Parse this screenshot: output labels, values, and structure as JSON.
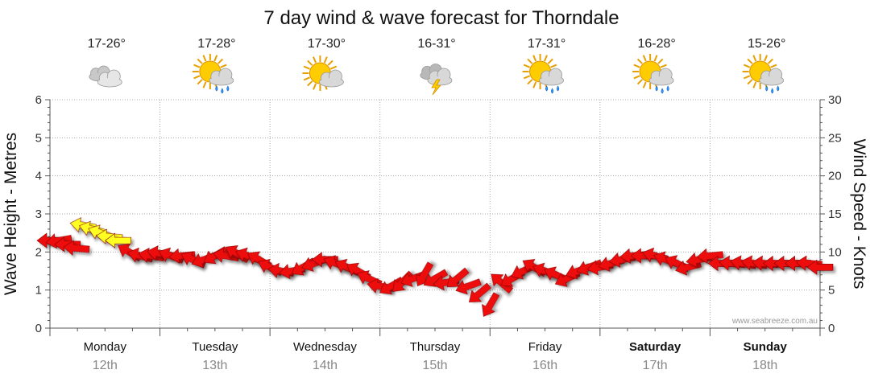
{
  "title": "7 day wind & wave forecast for Thorndale",
  "credit": "www.seabreeze.com.au",
  "colors": {
    "wind_normal": "#ee1111",
    "wind_strong": "#ffff22",
    "grid": "#aaaaaa"
  },
  "chart_data": {
    "type": "line",
    "title": "7 day wind & wave forecast for Thorndale",
    "ylabel_left": "Wave Height - Metres",
    "ylabel_right": "Wind Speed - Knots",
    "ylim_left": [
      0,
      6
    ],
    "ylim_right": [
      0,
      30
    ],
    "left_ticks": [
      "0",
      "1",
      "2",
      "3",
      "4",
      "5",
      "6"
    ],
    "right_ticks": [
      "0",
      "5",
      "10",
      "15",
      "20",
      "25",
      "30"
    ],
    "grid": true,
    "days": [
      {
        "name": "Monday",
        "date": "12th",
        "bold": false,
        "temp": "17-26°",
        "icon": "cloudy-icon"
      },
      {
        "name": "Tuesday",
        "date": "13th",
        "bold": false,
        "temp": "17-28°",
        "icon": "sun-cloud-rain-icon"
      },
      {
        "name": "Wednesday",
        "date": "14th",
        "bold": false,
        "temp": "17-30°",
        "icon": "sun-cloud-icon"
      },
      {
        "name": "Thursday",
        "date": "15th",
        "bold": false,
        "temp": "16-31°",
        "icon": "storm-icon"
      },
      {
        "name": "Friday",
        "date": "16th",
        "bold": false,
        "temp": "17-31°",
        "icon": "sun-cloud-rain-icon"
      },
      {
        "name": "Saturday",
        "date": "17th",
        "bold": true,
        "temp": "16-28°",
        "icon": "sun-cloud-rain-icon"
      },
      {
        "name": "Sunday",
        "date": "18th",
        "bold": true,
        "temp": "15-26°",
        "icon": "sun-cloud-rain-icon"
      }
    ],
    "series": [
      {
        "kind": "wind-arrows",
        "points": [
          {
            "t": 0.0,
            "speed": 11.5,
            "dir": 0
          },
          {
            "t": 0.08,
            "speed": 11.5,
            "dir": -10
          },
          {
            "t": 0.16,
            "speed": 11.0,
            "dir": 0
          },
          {
            "t": 0.24,
            "speed": 10.5,
            "dir": 5
          },
          {
            "t": 0.3,
            "speed": 13.5,
            "dir": 10,
            "strong": true
          },
          {
            "t": 0.38,
            "speed": 13.0,
            "dir": 15,
            "strong": true
          },
          {
            "t": 0.46,
            "speed": 12.5,
            "dir": 20,
            "strong": true
          },
          {
            "t": 0.54,
            "speed": 12.0,
            "dir": 5,
            "strong": true
          },
          {
            "t": 0.62,
            "speed": 11.5,
            "dir": 0,
            "strong": true
          },
          {
            "t": 0.72,
            "speed": 10.0,
            "dir": 30
          },
          {
            "t": 0.82,
            "speed": 9.5,
            "dir": 15
          },
          {
            "t": 0.92,
            "speed": 9.5,
            "dir": 10
          },
          {
            "t": 1.0,
            "speed": 9.8,
            "dir": 10
          },
          {
            "t": 1.1,
            "speed": 9.5,
            "dir": 20
          },
          {
            "t": 1.2,
            "speed": 9.5,
            "dir": -5
          },
          {
            "t": 1.3,
            "speed": 9.0,
            "dir": 25
          },
          {
            "t": 1.4,
            "speed": 9.0,
            "dir": -20
          },
          {
            "t": 1.5,
            "speed": 9.5,
            "dir": -30
          },
          {
            "t": 1.6,
            "speed": 9.5,
            "dir": 10
          },
          {
            "t": 1.7,
            "speed": 9.8,
            "dir": 30
          },
          {
            "t": 1.8,
            "speed": 9.5,
            "dir": 20
          },
          {
            "t": 1.9,
            "speed": 9.0,
            "dir": 30
          },
          {
            "t": 2.0,
            "speed": 8.0,
            "dir": 25
          },
          {
            "t": 2.1,
            "speed": 7.5,
            "dir": 10
          },
          {
            "t": 2.2,
            "speed": 7.5,
            "dir": -10
          },
          {
            "t": 2.3,
            "speed": 8.0,
            "dir": -30
          },
          {
            "t": 2.4,
            "speed": 8.5,
            "dir": -20
          },
          {
            "t": 2.5,
            "speed": 9.0,
            "dir": 0
          },
          {
            "t": 2.6,
            "speed": 8.5,
            "dir": 20
          },
          {
            "t": 2.7,
            "speed": 8.0,
            "dir": 25
          },
          {
            "t": 2.8,
            "speed": 7.5,
            "dir": 30
          },
          {
            "t": 2.9,
            "speed": 6.5,
            "dir": 25
          },
          {
            "t": 3.0,
            "speed": 5.5,
            "dir": 10
          },
          {
            "t": 3.1,
            "speed": 5.5,
            "dir": -30
          },
          {
            "t": 3.2,
            "speed": 6.0,
            "dir": -45
          },
          {
            "t": 3.3,
            "speed": 6.5,
            "dir": -20
          },
          {
            "t": 3.4,
            "speed": 7.0,
            "dir": -60
          },
          {
            "t": 3.5,
            "speed": 6.5,
            "dir": -30
          },
          {
            "t": 3.6,
            "speed": 6.0,
            "dir": -10
          },
          {
            "t": 3.7,
            "speed": 6.5,
            "dir": -40
          },
          {
            "t": 3.8,
            "speed": 5.5,
            "dir": -20
          },
          {
            "t": 3.9,
            "speed": 4.5,
            "dir": -40
          },
          {
            "t": 4.0,
            "speed": 3.0,
            "dir": -60
          },
          {
            "t": 4.1,
            "speed": 6.0,
            "dir": 40
          },
          {
            "t": 4.2,
            "speed": 6.5,
            "dir": -30
          },
          {
            "t": 4.3,
            "speed": 7.5,
            "dir": -25
          },
          {
            "t": 4.4,
            "speed": 8.0,
            "dir": 30
          },
          {
            "t": 4.5,
            "speed": 7.5,
            "dir": 20
          },
          {
            "t": 4.6,
            "speed": 7.0,
            "dir": 25
          },
          {
            "t": 4.7,
            "speed": 6.5,
            "dir": -25
          },
          {
            "t": 4.8,
            "speed": 7.5,
            "dir": -20
          },
          {
            "t": 4.9,
            "speed": 8.0,
            "dir": -20
          },
          {
            "t": 5.0,
            "speed": 8.0,
            "dir": -10
          },
          {
            "t": 5.1,
            "speed": 8.5,
            "dir": -15
          },
          {
            "t": 5.2,
            "speed": 9.0,
            "dir": -10
          },
          {
            "t": 5.3,
            "speed": 9.5,
            "dir": -5
          },
          {
            "t": 5.4,
            "speed": 9.5,
            "dir": 0
          },
          {
            "t": 5.5,
            "speed": 9.5,
            "dir": 15
          },
          {
            "t": 5.6,
            "speed": 9.0,
            "dir": 20
          },
          {
            "t": 5.7,
            "speed": 8.5,
            "dir": 25
          },
          {
            "t": 5.8,
            "speed": 8.0,
            "dir": -15
          },
          {
            "t": 5.9,
            "speed": 9.0,
            "dir": -10
          },
          {
            "t": 6.0,
            "speed": 9.5,
            "dir": -5
          },
          {
            "t": 6.1,
            "speed": 8.5,
            "dir": 0
          },
          {
            "t": 6.2,
            "speed": 8.5,
            "dir": 5
          },
          {
            "t": 6.3,
            "speed": 8.5,
            "dir": 10
          },
          {
            "t": 6.4,
            "speed": 8.5,
            "dir": 10
          },
          {
            "t": 6.5,
            "speed": 8.5,
            "dir": 5
          },
          {
            "t": 6.6,
            "speed": 8.5,
            "dir": 0
          },
          {
            "t": 6.7,
            "speed": 8.5,
            "dir": 0
          },
          {
            "t": 6.8,
            "speed": 8.5,
            "dir": 0
          },
          {
            "t": 6.9,
            "speed": 8.5,
            "dir": 5
          },
          {
            "t": 7.0,
            "speed": 8.0,
            "dir": 0
          }
        ]
      }
    ]
  }
}
